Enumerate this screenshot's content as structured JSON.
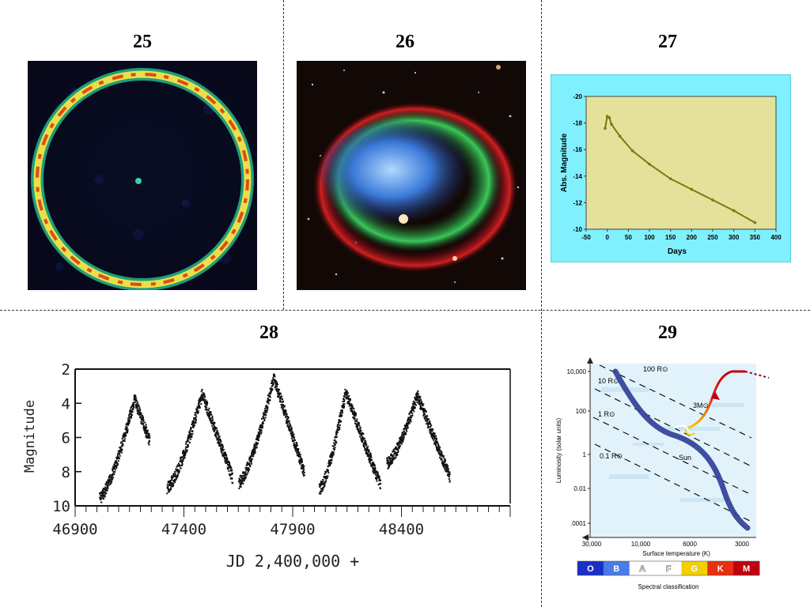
{
  "panels": {
    "p25": {
      "number": "25"
    },
    "p26": {
      "number": "26"
    },
    "p27": {
      "number": "27"
    },
    "p28": {
      "number": "28"
    },
    "p29": {
      "number": "29"
    }
  },
  "chart_data": [
    {
      "type": "line",
      "title": "",
      "xlabel": "Days",
      "ylabel": "Abs. Magnitude",
      "xlim": [
        -50,
        400
      ],
      "ylim": [
        -10,
        -20
      ],
      "x_ticks": [
        "-50",
        "0",
        "50",
        "100",
        "150",
        "200",
        "250",
        "300",
        "350",
        "400"
      ],
      "y_ticks": [
        "-20",
        "-18",
        "-16",
        "-14",
        "-12",
        "-10"
      ],
      "series": [
        {
          "x": [
            -5,
            0,
            5,
            10,
            30,
            60,
            100,
            150,
            200,
            250,
            300,
            350
          ],
          "values": [
            -17.6,
            -18.5,
            -18.4,
            -17.9,
            -17.0,
            -15.9,
            -14.9,
            -13.8,
            -13.0,
            -12.2,
            -11.4,
            -10.5
          ]
        }
      ],
      "colors": {
        "background": "#e4e29a",
        "frame": "#80f0ff",
        "line": "#7a7a10"
      }
    },
    {
      "type": "scatter",
      "title": "",
      "xlabel": "JD 2,400,000 +",
      "ylabel": "Magnitude",
      "xlim": [
        46900,
        48900
      ],
      "ylim": [
        10,
        2
      ],
      "x_ticks": [
        "46900",
        "47400",
        "47900",
        "48400"
      ],
      "y_ticks": [
        "2",
        "4",
        "6",
        "8",
        "10"
      ],
      "cycles": [
        {
          "rise_start": 47010,
          "peak": 47170,
          "peak_mag": 3.7,
          "fade_end": 47240,
          "fade_mag": 6.2,
          "min_mag": 9.5
        },
        {
          "rise_start": 47320,
          "peak": 47480,
          "peak_mag": 3.4,
          "fade_end": 47620,
          "fade_mag": 8.3,
          "min_mag": 8.9
        },
        {
          "rise_start": 47650,
          "peak": 47810,
          "peak_mag": 2.5,
          "fade_end": 47950,
          "fade_mag": 8.0,
          "min_mag": 8.6
        },
        {
          "rise_start": 48020,
          "peak": 48140,
          "peak_mag": 3.3,
          "fade_end": 48300,
          "fade_mag": 8.8,
          "min_mag": 9.0
        },
        {
          "rise_start": 48330,
          "peak": 48470,
          "peak_mag": 3.5,
          "fade_end": 48620,
          "fade_mag": 8.3,
          "min_mag": 7.5
        }
      ]
    },
    {
      "type": "line",
      "title": "",
      "xlabel": "Surface temperature (K)",
      "ylabel": "Luminosity (solar units)",
      "secondary_xlabel": "Spectral classification",
      "x_ticks": [
        "30,000",
        "10,000",
        "6000",
        "3000"
      ],
      "y_ticks": [
        "10,000",
        "100",
        "1",
        "0.01",
        ".0001"
      ],
      "radius_lines": [
        "100 R⊙",
        "10 R⊙",
        "1 R⊙",
        "0.1 R⊙"
      ],
      "annotations": [
        "3M⊙",
        "Sun"
      ],
      "spectral_classes": [
        "O",
        "B",
        "A",
        "F",
        "G",
        "K",
        "M"
      ],
      "spectral_colors": [
        "#1a2fc8",
        "#4a7ae8",
        "#ffffff",
        "#ffffff",
        "#f2d000",
        "#e83010",
        "#c00010"
      ]
    }
  ]
}
